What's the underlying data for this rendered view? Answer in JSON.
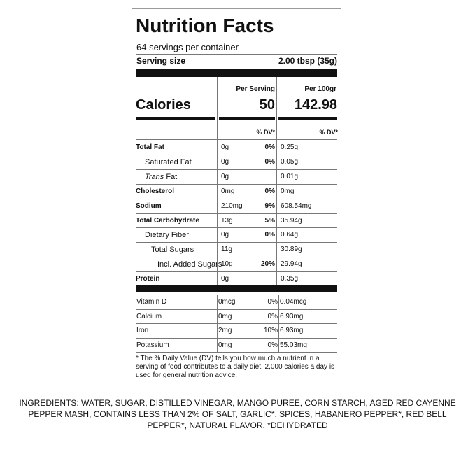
{
  "title": "Nutrition Facts",
  "servings": "64 servings per container",
  "serving_size": {
    "label": "Serving size",
    "value": "2.00 tbsp (35g)"
  },
  "calories": {
    "label": "Calories",
    "per_serving_header": "Per Serving",
    "per_100g_header": "Per 100gr",
    "per_serving": "50",
    "per_100g": "142.98"
  },
  "dv_headers": [
    "% DV*",
    "% DV*"
  ],
  "nutrients": [
    {
      "name": "Total Fat",
      "level": 0,
      "amount": "0g",
      "dv": "0%",
      "per_100g": "0.25g"
    },
    {
      "name": "Saturated Fat",
      "level": 1,
      "amount": "0g",
      "dv": "0%",
      "per_100g": "0.05g"
    },
    {
      "name_prefix": "Trans",
      "name": "Fat",
      "level": 1,
      "amount": "0g",
      "per_100g": "0.01g"
    },
    {
      "name": "Cholesterol",
      "level": 0,
      "amount": "0mg",
      "dv": "0%",
      "per_100g": "0mg"
    },
    {
      "name": "Sodium",
      "level": 0,
      "amount": "210mg",
      "dv": "9%",
      "per_100g": "608.54mg"
    },
    {
      "name": "Total Carbohydrate",
      "level": 0,
      "amount": "13g",
      "dv": "5%",
      "per_100g": "35.94g"
    },
    {
      "name": "Dietary Fiber",
      "level": 1,
      "amount": "0g",
      "dv": "0%",
      "per_100g": "0.64g"
    },
    {
      "name": "Total Sugars",
      "level": 2,
      "amount": "11g",
      "per_100g": "30.89g"
    },
    {
      "name": "Incl. Added Sugars",
      "level": 3,
      "amount": "10g",
      "dv": "20%",
      "per_100g": "29.94g"
    },
    {
      "name": "Protein",
      "level": 0,
      "amount": "0g",
      "per_100g": "0.35g"
    }
  ],
  "vitamins": [
    {
      "name": "Vitamin D",
      "amount": "0mcg",
      "dv": "0%",
      "per_100g": "0.04mcg"
    },
    {
      "name": "Calcium",
      "amount": "0mg",
      "dv": "0%",
      "per_100g": "6.93mg"
    },
    {
      "name": "Iron",
      "amount": "2mg",
      "dv": "10%",
      "per_100g": "6.93mg"
    },
    {
      "name": "Potassium",
      "amount": "0mg",
      "dv": "0%",
      "per_100g": "55.03mg"
    }
  ],
  "footnote": "* The % Daily Value (DV) tells you how much a nutrient in a serving of food contributes to a daily diet. 2,000 calories a day is used for general nutrition advice.",
  "ingredients": "INGREDIENTS: WATER, SUGAR, DISTILLED VINEGAR, MANGO PUREE, CORN STARCH, AGED RED CAYENNE PEPPER MASH, CONTAINS LESS THAN 2% OF SALT, GARLIC*, SPICES, HABANERO PEPPER*, RED BELL PEPPER*, NATURAL FLAVOR. *DEHYDRATED"
}
